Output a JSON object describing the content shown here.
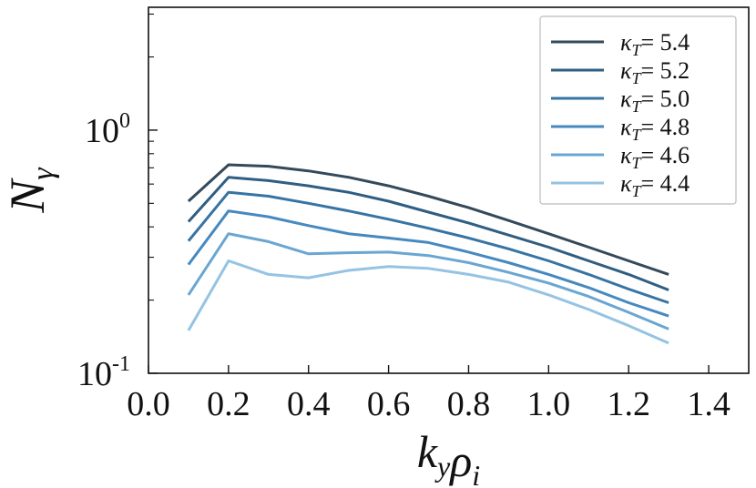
{
  "chart_data": {
    "type": "line",
    "title": "",
    "xlabel": "k_y ρ_i",
    "ylabel": "N_γ",
    "xscale": "linear",
    "yscale": "log",
    "xlim": [
      0.0,
      1.5
    ],
    "ylim": [
      0.1,
      3.2
    ],
    "xticks": [
      0.0,
      0.2,
      0.4,
      0.6,
      0.8,
      1.0,
      1.2,
      1.4
    ],
    "xtick_labels": [
      "0.0",
      "0.2",
      "0.4",
      "0.6",
      "0.8",
      "1.0",
      "1.2",
      "1.4"
    ],
    "yticks_major": [
      0.1,
      1.0
    ],
    "ytick_labels": [
      "10",
      "10"
    ],
    "ytick_exponents": [
      "-1",
      "0"
    ],
    "grid": false,
    "legend_position": "top-right",
    "x": [
      0.1,
      0.2,
      0.3,
      0.4,
      0.5,
      0.6,
      0.7,
      0.8,
      0.9,
      1.0,
      1.1,
      1.2,
      1.3
    ],
    "series": [
      {
        "name": "κ_T = 5.4",
        "color": "#34495a",
        "values": [
          0.51,
          0.72,
          0.71,
          0.68,
          0.64,
          0.59,
          0.535,
          0.48,
          0.425,
          0.375,
          0.33,
          0.29,
          0.255
        ]
      },
      {
        "name": "κ_T = 5.2",
        "color": "#2f5e82",
        "values": [
          0.42,
          0.64,
          0.62,
          0.59,
          0.555,
          0.51,
          0.46,
          0.415,
          0.37,
          0.33,
          0.29,
          0.255,
          0.22
        ]
      },
      {
        "name": "κ_T = 5.0",
        "color": "#3574a4",
        "values": [
          0.35,
          0.555,
          0.535,
          0.5,
          0.465,
          0.43,
          0.395,
          0.36,
          0.325,
          0.29,
          0.255,
          0.222,
          0.195
        ]
      },
      {
        "name": "κ_T = 4.8",
        "color": "#4689c0",
        "values": [
          0.28,
          0.465,
          0.44,
          0.405,
          0.375,
          0.36,
          0.345,
          0.315,
          0.285,
          0.255,
          0.225,
          0.195,
          0.172
        ]
      },
      {
        "name": "κ_T = 4.6",
        "color": "#6aa6d2",
        "values": [
          0.21,
          0.375,
          0.348,
          0.31,
          0.313,
          0.315,
          0.305,
          0.285,
          0.26,
          0.235,
          0.207,
          0.178,
          0.152
        ]
      },
      {
        "name": "κ_T = 4.4",
        "color": "#95c3e3",
        "values": [
          0.15,
          0.29,
          0.255,
          0.247,
          0.265,
          0.275,
          0.27,
          0.255,
          0.237,
          0.21,
          0.183,
          0.157,
          0.133
        ]
      }
    ]
  }
}
